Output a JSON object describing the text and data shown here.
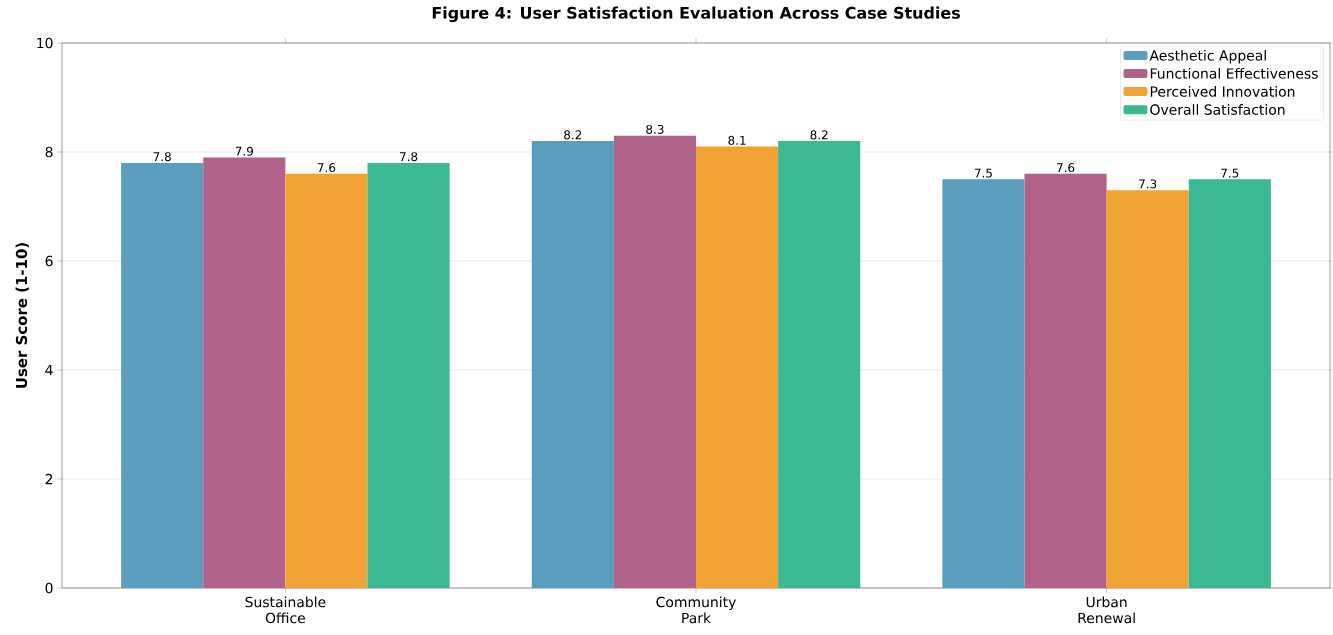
{
  "chart_data": {
    "type": "bar",
    "title": "Figure 4: User Satisfaction Evaluation Across Case Studies",
    "ylabel": "User Score (1-10)",
    "categories": [
      "Sustainable Office",
      "Community Park",
      "Urban Renewal"
    ],
    "series": [
      {
        "name": "Aesthetic Appeal",
        "color": "#5a9dbd",
        "values": [
          7.8,
          8.2,
          7.5
        ]
      },
      {
        "name": "Functional Effectiveness",
        "color": "#b1628b",
        "values": [
          7.9,
          8.3,
          7.6
        ]
      },
      {
        "name": "Perceived Innovation",
        "color": "#f0a332",
        "values": [
          7.6,
          8.1,
          7.3
        ]
      },
      {
        "name": "Overall Satisfaction",
        "color": "#3bb894",
        "values": [
          7.8,
          8.2,
          7.5
        ]
      }
    ],
    "ylim": [
      0,
      10
    ],
    "yticks": [
      0,
      2,
      4,
      6,
      8,
      10
    ],
    "grid": "y",
    "legend": "top right",
    "data_labels": true
  }
}
